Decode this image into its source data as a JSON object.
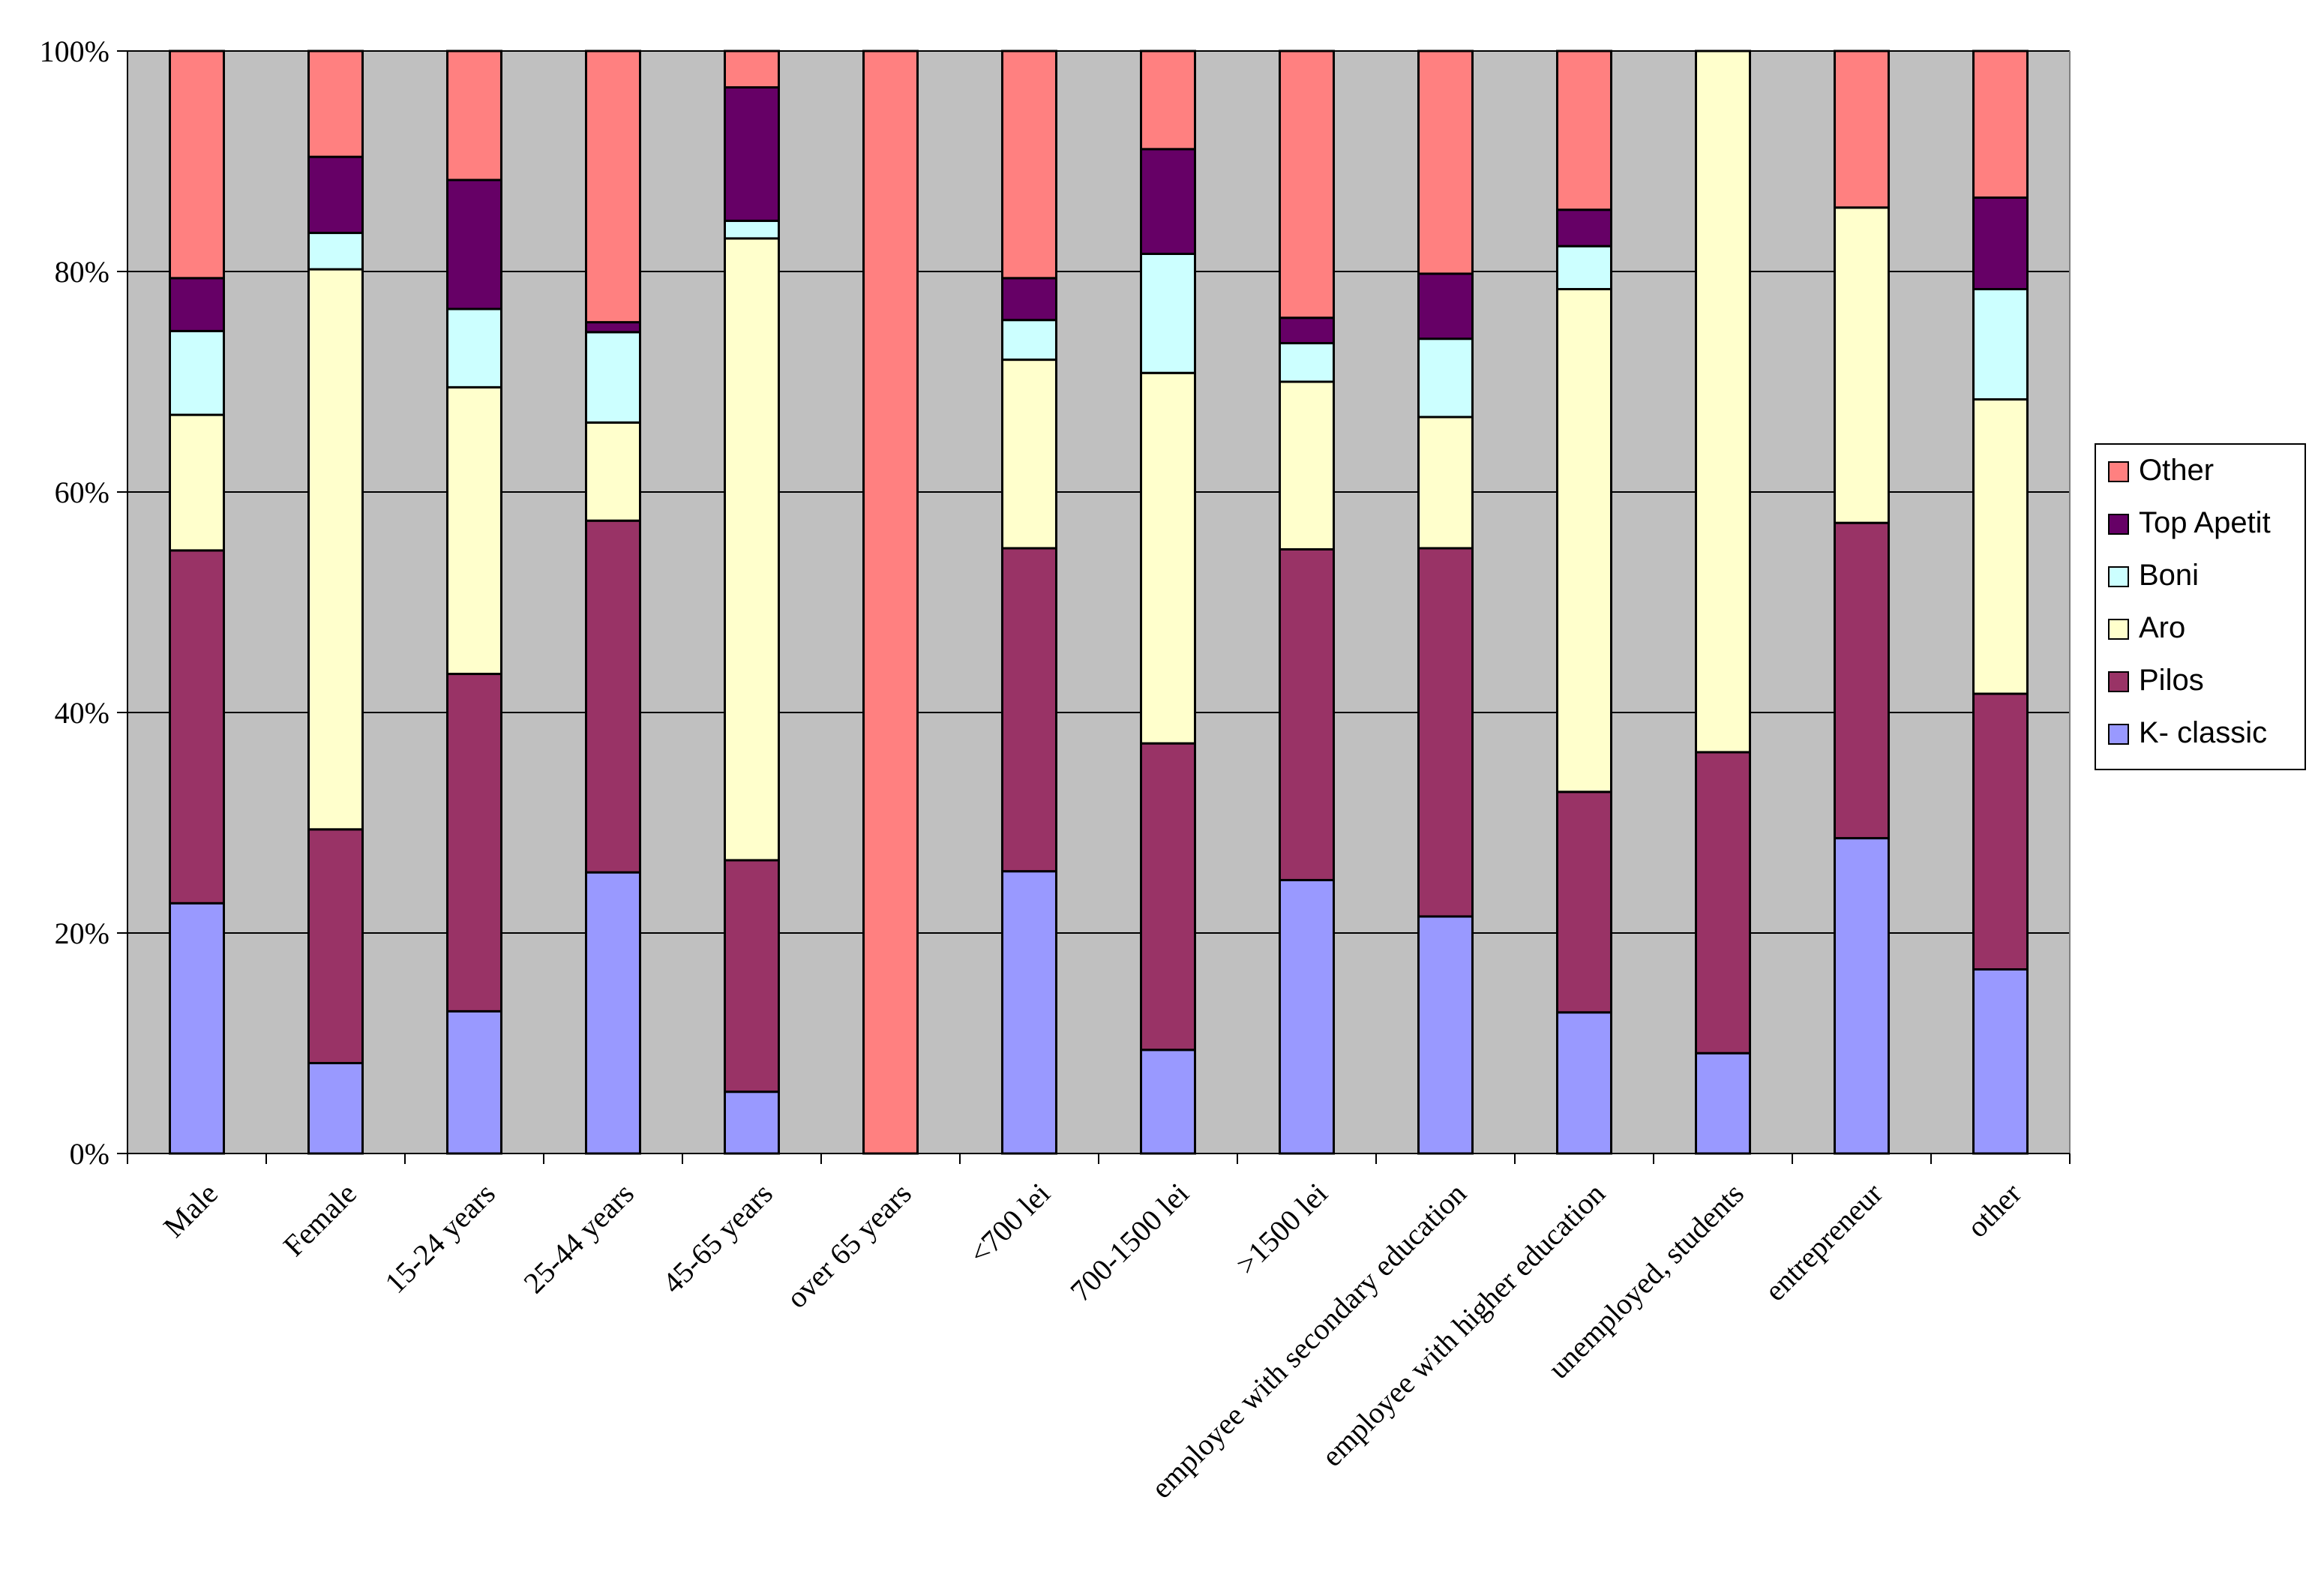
{
  "chart_data": {
    "type": "bar",
    "stacked": true,
    "normalized_percent": true,
    "title": "",
    "xlabel": "",
    "ylabel": "",
    "ylim": [
      0,
      100
    ],
    "y_ticks": [
      "0%",
      "20%",
      "40%",
      "60%",
      "80%",
      "100%"
    ],
    "y_tick_values": [
      0,
      20,
      40,
      60,
      80,
      100
    ],
    "grid": true,
    "legend_position": "right",
    "plot_background": "#c0c0c0",
    "categories": [
      "Male",
      "Female",
      "15-24 years",
      "25-44 years",
      "45-65  years",
      "over 65 years",
      "<700 lei",
      "700-1500 lei",
      ">1500 lei",
      "employee with secondary education",
      "employee with higher education",
      "unemployed, students",
      "entrepreneur",
      "other"
    ],
    "series": [
      {
        "name": "K- classic",
        "color": "#9999ff",
        "values": [
          22.7,
          8.2,
          12.9,
          25.5,
          5.6,
          0,
          25.6,
          9.4,
          24.8,
          21.5,
          12.8,
          9.1,
          28.6,
          16.7
        ]
      },
      {
        "name": "Pilos",
        "color": "#993366",
        "values": [
          32.0,
          21.2,
          30.6,
          31.9,
          21.0,
          0,
          29.3,
          27.8,
          30.0,
          33.4,
          20.0,
          27.3,
          28.6,
          25.0
        ]
      },
      {
        "name": "Aro",
        "color": "#ffffcc",
        "values": [
          12.3,
          50.8,
          26.0,
          8.9,
          56.4,
          0,
          17.1,
          33.6,
          15.2,
          11.9,
          45.6,
          63.6,
          28.6,
          26.7
        ]
      },
      {
        "name": "Boni",
        "color": "#ccffff",
        "values": [
          7.6,
          3.3,
          7.1,
          8.2,
          1.6,
          0,
          3.6,
          10.8,
          3.5,
          7.1,
          3.9,
          0,
          0,
          10.0
        ]
      },
      {
        "name": "Top Apetit",
        "color": "#660066",
        "values": [
          4.8,
          6.9,
          11.7,
          0.9,
          12.1,
          0,
          3.8,
          9.5,
          2.3,
          5.9,
          3.3,
          0,
          0,
          8.3
        ]
      },
      {
        "name": "Other",
        "color": "#ff8080",
        "values": [
          20.6,
          9.6,
          11.7,
          24.6,
          3.3,
          100,
          20.6,
          8.9,
          24.2,
          20.2,
          14.4,
          0,
          14.2,
          13.3
        ]
      }
    ],
    "legend_order": [
      "Other",
      "Top Apetit",
      "Boni",
      "Aro",
      "Pilos",
      "K- classic"
    ]
  }
}
